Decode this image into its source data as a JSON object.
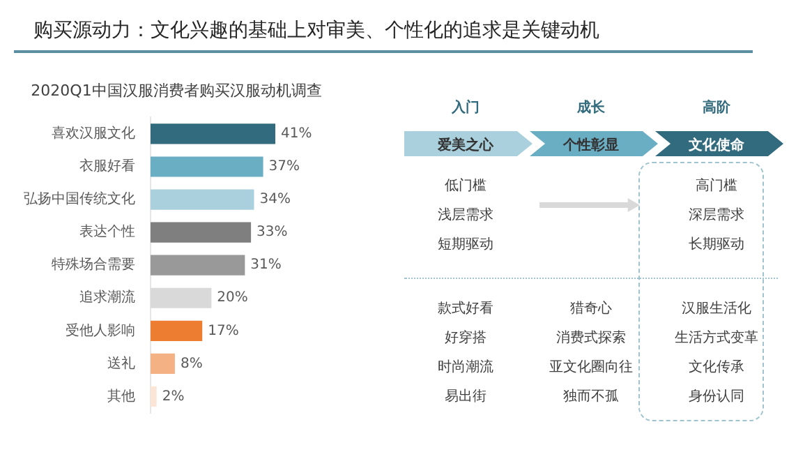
{
  "chart_data": [
    {
      "type": "bar",
      "title": "购买源动力：文化兴趣的基础上对审美、个性化的追求是关键动机",
      "subtitle": "2020Q1中国汉服消费者购买汉服动机调查",
      "orientation": "horizontal",
      "categories": [
        "喜欢汉服文化",
        "衣服好看",
        "弘扬中国传统文化",
        "表达个性",
        "特殊场合需要",
        "追求潮流",
        "受他人影响",
        "送礼",
        "其他"
      ],
      "values": [
        41,
        37,
        34,
        33,
        31,
        20,
        17,
        8,
        2
      ],
      "value_labels": [
        "41%",
        "37%",
        "34%",
        "33%",
        "31%",
        "20%",
        "17%",
        "8%",
        "2%"
      ],
      "colors": [
        "#336b7e",
        "#6aaec4",
        "#a9d0dc",
        "#7f7f7f",
        "#999999",
        "#d9d9d9",
        "#ed7d31",
        "#f4b183",
        "#fbe5d6"
      ],
      "tick_labels": "y",
      "legend": false
    },
    {
      "type": "other",
      "annotations": [
        "入门",
        "成长",
        "高阶",
        "爱美之心",
        "个性彰显",
        "文化使命",
        "低门槛",
        "浅层需求",
        "短期驱动",
        "高门槛",
        "深层需求",
        "长期驱动",
        "款式好看",
        "好穿搭",
        "时尚潮流",
        "易出街",
        "猎奇心",
        "消费式探索",
        "亚文化圈向往",
        "独而不孤",
        "汉服生活化",
        "生活方式变革",
        "文化传承",
        "身份认同"
      ]
    }
  ]
}
